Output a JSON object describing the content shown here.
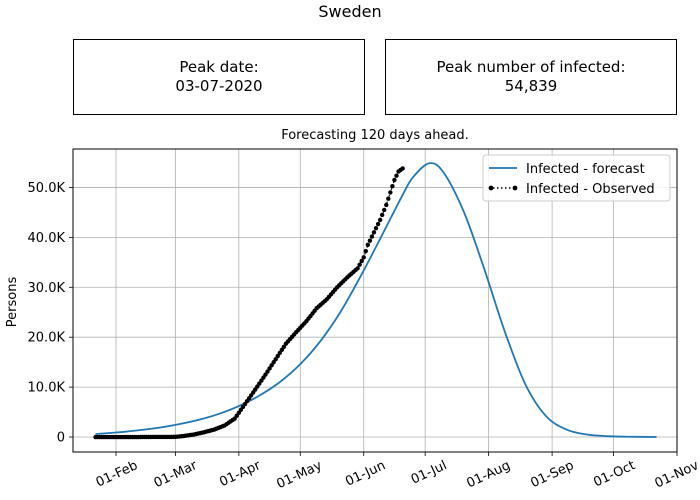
{
  "figure_title": "Sweden",
  "stats": {
    "peak_date_label": "Peak date:",
    "peak_date_value": "03-07-2020",
    "peak_infected_label": "Peak number of infected:",
    "peak_infected_value": "54,839"
  },
  "chart_data": {
    "type": "line",
    "title": "Forecasting 120 days ahead.",
    "xlabel": "",
    "ylabel": "Persons",
    "x_start": "2020-01-22",
    "x_axis": {
      "min": "2020-01-11",
      "max": "2020-11-01",
      "ticks": [
        "2020-02-01",
        "2020-03-01",
        "2020-04-01",
        "2020-05-01",
        "2020-06-01",
        "2020-07-01",
        "2020-08-01",
        "2020-09-01",
        "2020-10-01",
        "2020-11-01"
      ],
      "tick_labels": [
        "01-Feb",
        "01-Mar",
        "01-Apr",
        "01-May",
        "01-Jun",
        "01-Jul",
        "01-Aug",
        "01-Sep",
        "01-Oct",
        "01-Nov"
      ]
    },
    "y_axis": {
      "min": -3000,
      "max": 57700,
      "ticks": [
        0,
        10000,
        20000,
        30000,
        40000,
        50000
      ],
      "tick_labels": [
        "0",
        "10.0K",
        "20.0K",
        "30.0K",
        "40.0K",
        "50.0K"
      ]
    },
    "grid": true,
    "legend_position": "top-right",
    "series": [
      {
        "name": "Infected - forecast",
        "style": "line",
        "color": "#1f77b4",
        "x": [
          "2020-01-22",
          "2020-02-01",
          "2020-02-11",
          "2020-02-21",
          "2020-03-02",
          "2020-03-12",
          "2020-03-22",
          "2020-04-01",
          "2020-04-11",
          "2020-04-21",
          "2020-05-01",
          "2020-05-11",
          "2020-05-21",
          "2020-05-31",
          "2020-06-10",
          "2020-06-20",
          "2020-06-25",
          "2020-07-03",
          "2020-07-10",
          "2020-07-20",
          "2020-07-30",
          "2020-08-09",
          "2020-08-19",
          "2020-08-29",
          "2020-09-08",
          "2020-09-18",
          "2020-09-28",
          "2020-10-08",
          "2020-10-18",
          "2020-10-22"
        ],
        "values": [
          600,
          900,
          1300,
          1800,
          2500,
          3400,
          4600,
          6200,
          8300,
          11000,
          14600,
          19300,
          25300,
          32600,
          40500,
          48500,
          52000,
          54839,
          53000,
          45000,
          33500,
          21000,
          10500,
          4200,
          1500,
          500,
          170,
          60,
          20,
          15
        ]
      },
      {
        "name": "Infected - Observed",
        "style": "dotted-markers",
        "color": "#000000",
        "x": [
          "2020-01-22",
          "2020-02-01",
          "2020-02-11",
          "2020-02-21",
          "2020-03-01",
          "2020-03-05",
          "2020-03-10",
          "2020-03-15",
          "2020-03-20",
          "2020-03-25",
          "2020-03-30",
          "2020-04-04",
          "2020-04-09",
          "2020-04-14",
          "2020-04-19",
          "2020-04-24",
          "2020-04-29",
          "2020-05-04",
          "2020-05-09",
          "2020-05-14",
          "2020-05-19",
          "2020-05-24",
          "2020-05-29",
          "2020-06-01",
          "2020-06-03",
          "2020-06-06",
          "2020-06-09",
          "2020-06-12",
          "2020-06-14",
          "2020-06-16",
          "2020-06-18",
          "2020-06-20"
        ],
        "values": [
          0,
          0,
          1,
          10,
          30,
          200,
          500,
          950,
          1500,
          2300,
          3700,
          6600,
          9500,
          12500,
          15600,
          18700,
          21000,
          23200,
          25800,
          27600,
          30000,
          32000,
          33800,
          36000,
          38500,
          41000,
          43500,
          46500,
          49000,
          51500,
          53200,
          53800
        ]
      }
    ]
  }
}
